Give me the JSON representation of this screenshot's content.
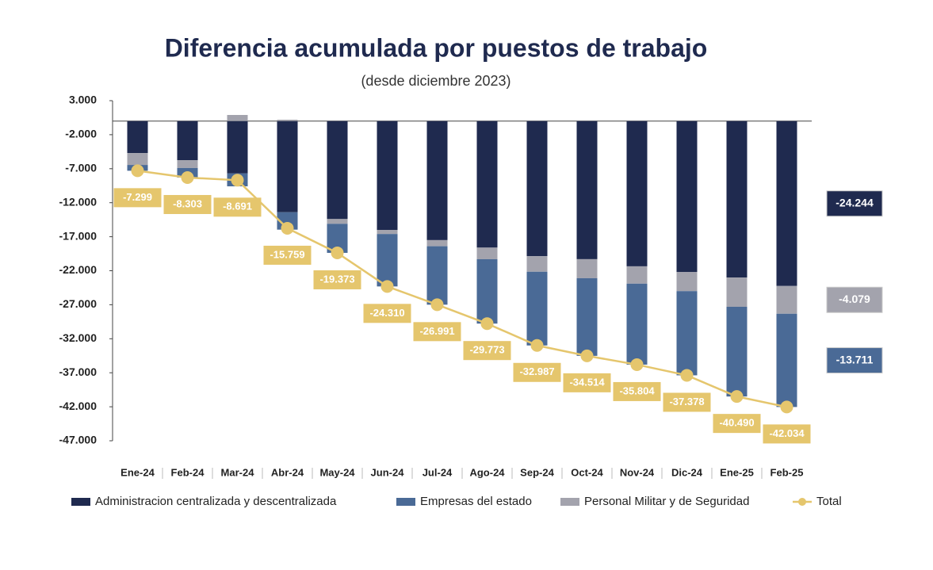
{
  "chart_data": {
    "type": "stacked_bar_line",
    "title": "Diferencia acumulada por puestos de trabajo",
    "subtitle": "(desde diciembre 2023)",
    "categories": [
      "Ene-24",
      "Feb-24",
      "Mar-24",
      "Abr-24",
      "May-24",
      "Jun-24",
      "Jul-24",
      "Ago-24",
      "Sep-24",
      "Oct-24",
      "Nov-24",
      "Dic-24",
      "Ene-25",
      "Feb-25"
    ],
    "series": [
      {
        "name": "Administracion centralizada y descentralizada",
        "color": "#1f2a4f",
        "values": [
          -4700,
          -5750,
          -7700,
          -13400,
          -14400,
          -16000,
          -17500,
          -18600,
          -19850,
          -20300,
          -21350,
          -22200,
          -23000,
          -24244
        ],
        "value_labels": [
          null,
          null,
          null,
          null,
          null,
          null,
          null,
          null,
          null,
          null,
          null,
          null,
          null,
          "-24.244"
        ]
      },
      {
        "name": "Personal Militar y de Seguridad",
        "color": "#a3a3ad",
        "values": [
          -1750,
          -1150,
          900,
          200,
          -700,
          -600,
          -900,
          -1700,
          -2300,
          -2800,
          -2550,
          -2800,
          -4300,
          -4079
        ],
        "value_labels": [
          null,
          null,
          null,
          null,
          null,
          null,
          null,
          null,
          null,
          null,
          null,
          null,
          null,
          "-4.079"
        ]
      },
      {
        "name": "Empresas del estado",
        "color": "#4a6a96",
        "values": [
          -849,
          -1403,
          -1891,
          -2559,
          -4273,
          -7710,
          -8591,
          -9473,
          -10837,
          -11414,
          -11904,
          -12378,
          -13190,
          -13711
        ],
        "value_labels": [
          null,
          null,
          null,
          null,
          null,
          null,
          null,
          null,
          null,
          null,
          null,
          null,
          null,
          "-13.711"
        ]
      },
      {
        "name": "Total",
        "color": "#e5c66d",
        "line": true,
        "values": [
          -7299,
          -8303,
          -8691,
          -15759,
          -19373,
          -24310,
          -26991,
          -29773,
          -32987,
          -34514,
          -35804,
          -37378,
          -40490,
          -42034
        ],
        "value_labels": [
          "-7.299",
          "-8.303",
          "-8.691",
          "-15.759",
          "-19.373",
          "-24.310",
          "-26.991",
          "-29.773",
          "-32.987",
          "-34.514",
          "-35.804",
          "-37.378",
          "-40.490",
          "-42.034"
        ]
      }
    ],
    "legend_order": [
      0,
      2,
      1,
      3
    ],
    "ylim": [
      -47000,
      3000
    ],
    "yticks": [
      {
        "value": 3000,
        "label": "3.000"
      },
      {
        "value": -2000,
        "label": "-2.000"
      },
      {
        "value": -7000,
        "label": "-7.000"
      },
      {
        "value": -12000,
        "label": "-12.000"
      },
      {
        "value": -17000,
        "label": "-17.000"
      },
      {
        "value": -22000,
        "label": "-22.000"
      },
      {
        "value": -27000,
        "label": "-27.000"
      },
      {
        "value": -32000,
        "label": "-32.000"
      },
      {
        "value": -37000,
        "label": "-37.000"
      },
      {
        "value": -42000,
        "label": "-42.000"
      },
      {
        "value": -47000,
        "label": "-47.000"
      }
    ]
  }
}
